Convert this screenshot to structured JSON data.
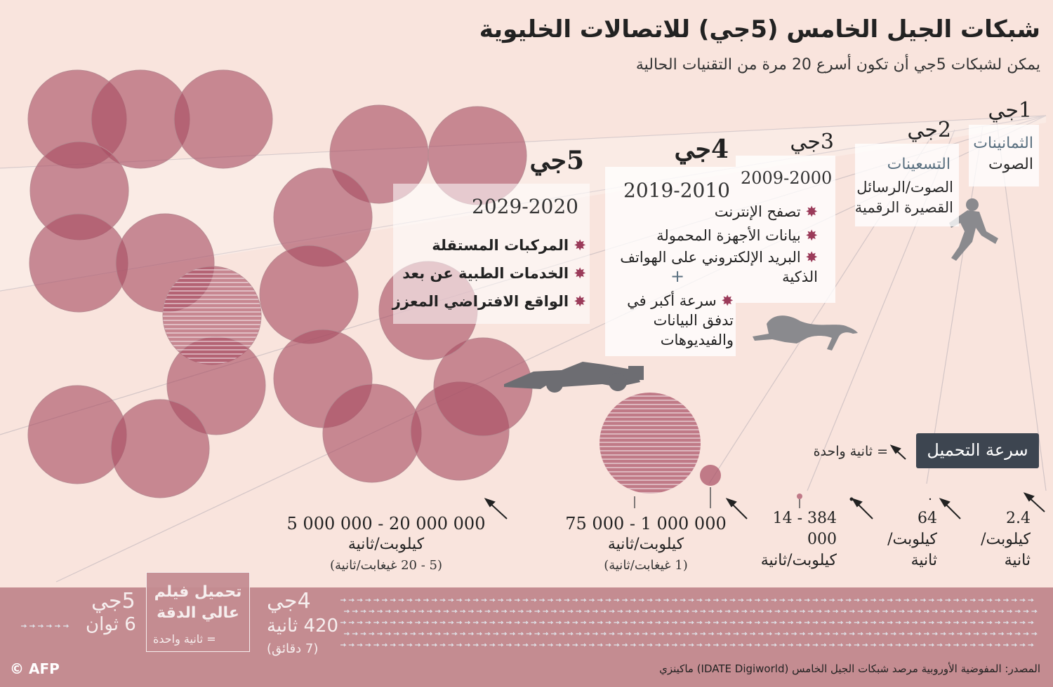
{
  "header": {
    "title": "شبكات الجيل الخامس (5جي) للاتصالات الخليوية",
    "subtitle": "يمكن لشبكات 5جي أن تكون أسرع 20 مرة من التقنيات الحالية"
  },
  "colors": {
    "background": "#f9e4dd",
    "circle": "#a84d62",
    "band": "#c48c91",
    "badge": "#3d4550",
    "star": "#9b3b5a"
  },
  "generations": {
    "g1": {
      "label": "1جي",
      "era": "الثمانينات",
      "services": "الصوت",
      "icon": "runner-icon"
    },
    "g2": {
      "label": "2جي",
      "era": "التسعينات",
      "services_line1": "الصوت/الرسائل",
      "services_line2": "القصيرة الرقمية"
    },
    "g3": {
      "label": "3جي",
      "years": "2009-2000",
      "icon": "cheetah-icon"
    },
    "g4": {
      "label": "4جي",
      "years": "2019-2010",
      "features": [
        "تصفح الإنترنت",
        "بيانات الأجهزة المحمولة",
        "البريد الإلكتروني على الهواتف الذكية"
      ],
      "plus": "+",
      "extra": "سرعة أكبر في تدفق البيانات والفيديوهات"
    },
    "g5": {
      "label": "5جي",
      "years": "2029-2020",
      "icon": "race-car-icon",
      "features": [
        "المركبات المستقلة",
        "الخدمات الطبية عن بعد",
        "الواقع الافتراضي المعزز"
      ]
    }
  },
  "download": {
    "title": "سرعة التحميل",
    "legend": "= ثانية واحدة",
    "speeds": {
      "g1": {
        "value": "2.4",
        "unit": "كيلوبت/ ثانية"
      },
      "g2": {
        "value": "64",
        "unit": "كيلوبت/ ثانية"
      },
      "g3": {
        "value": "384 - 14 000",
        "unit": "كيلوبت/ثانية"
      },
      "g4": {
        "value": "75 000 - 1 000 000",
        "unit": "كيلوبت/ثانية",
        "note": "(1 غيغابت/ثانية)"
      },
      "g5": {
        "value": "5 000 000 - 20 000 000",
        "unit": "كيلوبت/ثانية",
        "note": "(5 - 20 غيغابت/ثانية)"
      }
    }
  },
  "movie": {
    "title": "تحميل فيلم عالي الدقة",
    "legend": "= ثانية واحدة",
    "g5": {
      "label": "5جي",
      "time": "6 ثوان",
      "seconds": 6
    },
    "g4": {
      "label": "4جي",
      "time": "420 ثانية",
      "note": "(7 دقائق)",
      "seconds": 420
    }
  },
  "source": "المصدر: المفوضية الأوروبية مرصد شبكات الجيل الخامس (IDATE Digiworld) ماكينزي",
  "credit": "© AFP"
}
